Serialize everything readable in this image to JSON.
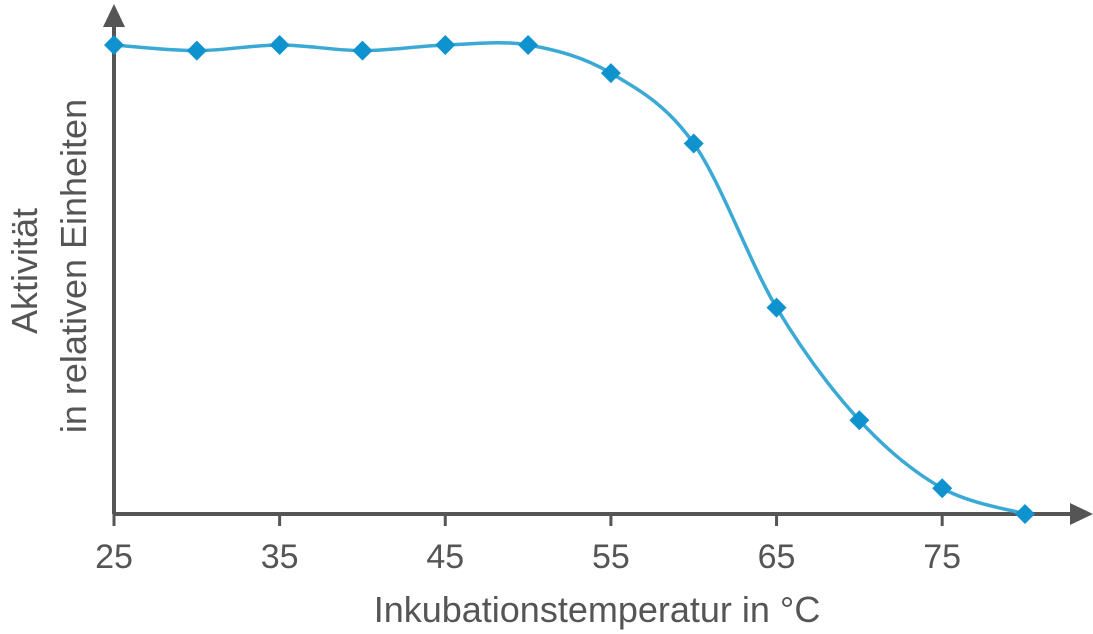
{
  "chart_data": {
    "type": "line",
    "title": "",
    "xlabel": "Inkubationstemperatur in °C",
    "ylabel_lines": [
      "Aktivität",
      "in relativen Einheiten"
    ],
    "x_ticks": [
      "25",
      "35",
      "45",
      "55",
      "65",
      "75"
    ],
    "xlim": [
      25,
      83
    ],
    "ylim": [
      0,
      100
    ],
    "y_tick_labels_shown": false,
    "grid": false,
    "legend": "none",
    "series": [
      {
        "x": [
          25,
          30,
          35,
          40,
          45,
          50,
          55,
          60,
          65,
          70,
          75,
          80
        ],
        "y": [
          100,
          98.8,
          100,
          98.8,
          100,
          100,
          94,
          79,
          44,
          20,
          5.5,
          0
        ]
      }
    ],
    "colors": {
      "line": "#3aa9d5",
      "marker": "#0e93cf",
      "axis": "#555555"
    },
    "marker": "diamond-icon"
  }
}
